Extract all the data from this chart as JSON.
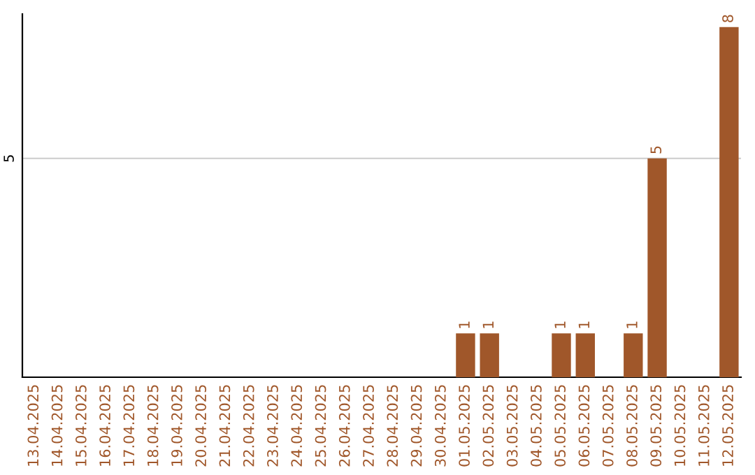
{
  "chart_data": {
    "type": "bar",
    "categories": [
      "13.04.2025",
      "14.04.2025",
      "15.04.2025",
      "16.04.2025",
      "17.04.2025",
      "18.04.2025",
      "19.04.2025",
      "20.04.2025",
      "21.04.2025",
      "22.04.2025",
      "23.04.2025",
      "24.04.2025",
      "25.04.2025",
      "26.04.2025",
      "27.04.2025",
      "28.04.2025",
      "29.04.2025",
      "30.04.2025",
      "01.05.2025",
      "02.05.2025",
      "03.05.2025",
      "04.05.2025",
      "05.05.2025",
      "06.05.2025",
      "07.05.2025",
      "08.05.2025",
      "09.05.2025",
      "10.05.2025",
      "11.05.2025",
      "12.05.2025"
    ],
    "values": [
      null,
      null,
      null,
      null,
      null,
      null,
      null,
      null,
      null,
      null,
      null,
      null,
      null,
      null,
      null,
      null,
      null,
      null,
      1,
      1,
      null,
      null,
      1,
      1,
      null,
      1,
      5,
      null,
      null,
      8
    ],
    "data_labels": true,
    "color": "#a0572a",
    "ylim": [
      0,
      8.3
    ],
    "ref_lines": [
      {
        "axis": "y",
        "value": 5,
        "label": "5",
        "color": "#cccccc"
      }
    ]
  }
}
